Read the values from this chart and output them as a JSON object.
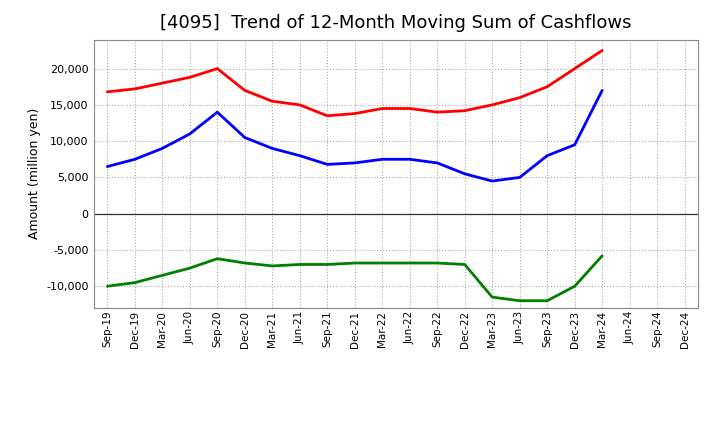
{
  "title": "[4095]  Trend of 12-Month Moving Sum of Cashflows",
  "ylabel": "Amount (million yen)",
  "x_labels": [
    "Sep-19",
    "Dec-19",
    "Mar-20",
    "Jun-20",
    "Sep-20",
    "Dec-20",
    "Mar-21",
    "Jun-21",
    "Sep-21",
    "Dec-21",
    "Mar-22",
    "Jun-22",
    "Sep-22",
    "Dec-22",
    "Mar-23",
    "Jun-23",
    "Sep-23",
    "Dec-23",
    "Mar-24",
    "Jun-24",
    "Sep-24",
    "Dec-24"
  ],
  "operating": [
    16800,
    17200,
    18000,
    18800,
    20000,
    17000,
    15500,
    15000,
    13500,
    13800,
    14500,
    14500,
    14000,
    14200,
    15000,
    16000,
    17500,
    20000,
    22500,
    null,
    null,
    null
  ],
  "investing": [
    -10000,
    -9500,
    -8500,
    -7500,
    -6200,
    -6800,
    -7200,
    -7000,
    -7000,
    -6800,
    -6800,
    -6800,
    -6800,
    -7000,
    -11500,
    -12000,
    -12000,
    -10000,
    -5800,
    null,
    null,
    null
  ],
  "free": [
    6500,
    7500,
    9000,
    11000,
    14000,
    10500,
    9000,
    8000,
    6800,
    7000,
    7500,
    7500,
    7000,
    5500,
    4500,
    5000,
    8000,
    9500,
    17000,
    null,
    null,
    null
  ],
  "ylim": [
    -13000,
    24000
  ],
  "yticks": [
    -10000,
    -5000,
    0,
    5000,
    10000,
    15000,
    20000
  ],
  "operating_color": "#ff0000",
  "investing_color": "#008000",
  "free_color": "#0000ff",
  "bg_color": "#ffffff",
  "plot_bg_color": "#ffffff",
  "grid_color": "#aaaaaa",
  "title_fontsize": 13
}
